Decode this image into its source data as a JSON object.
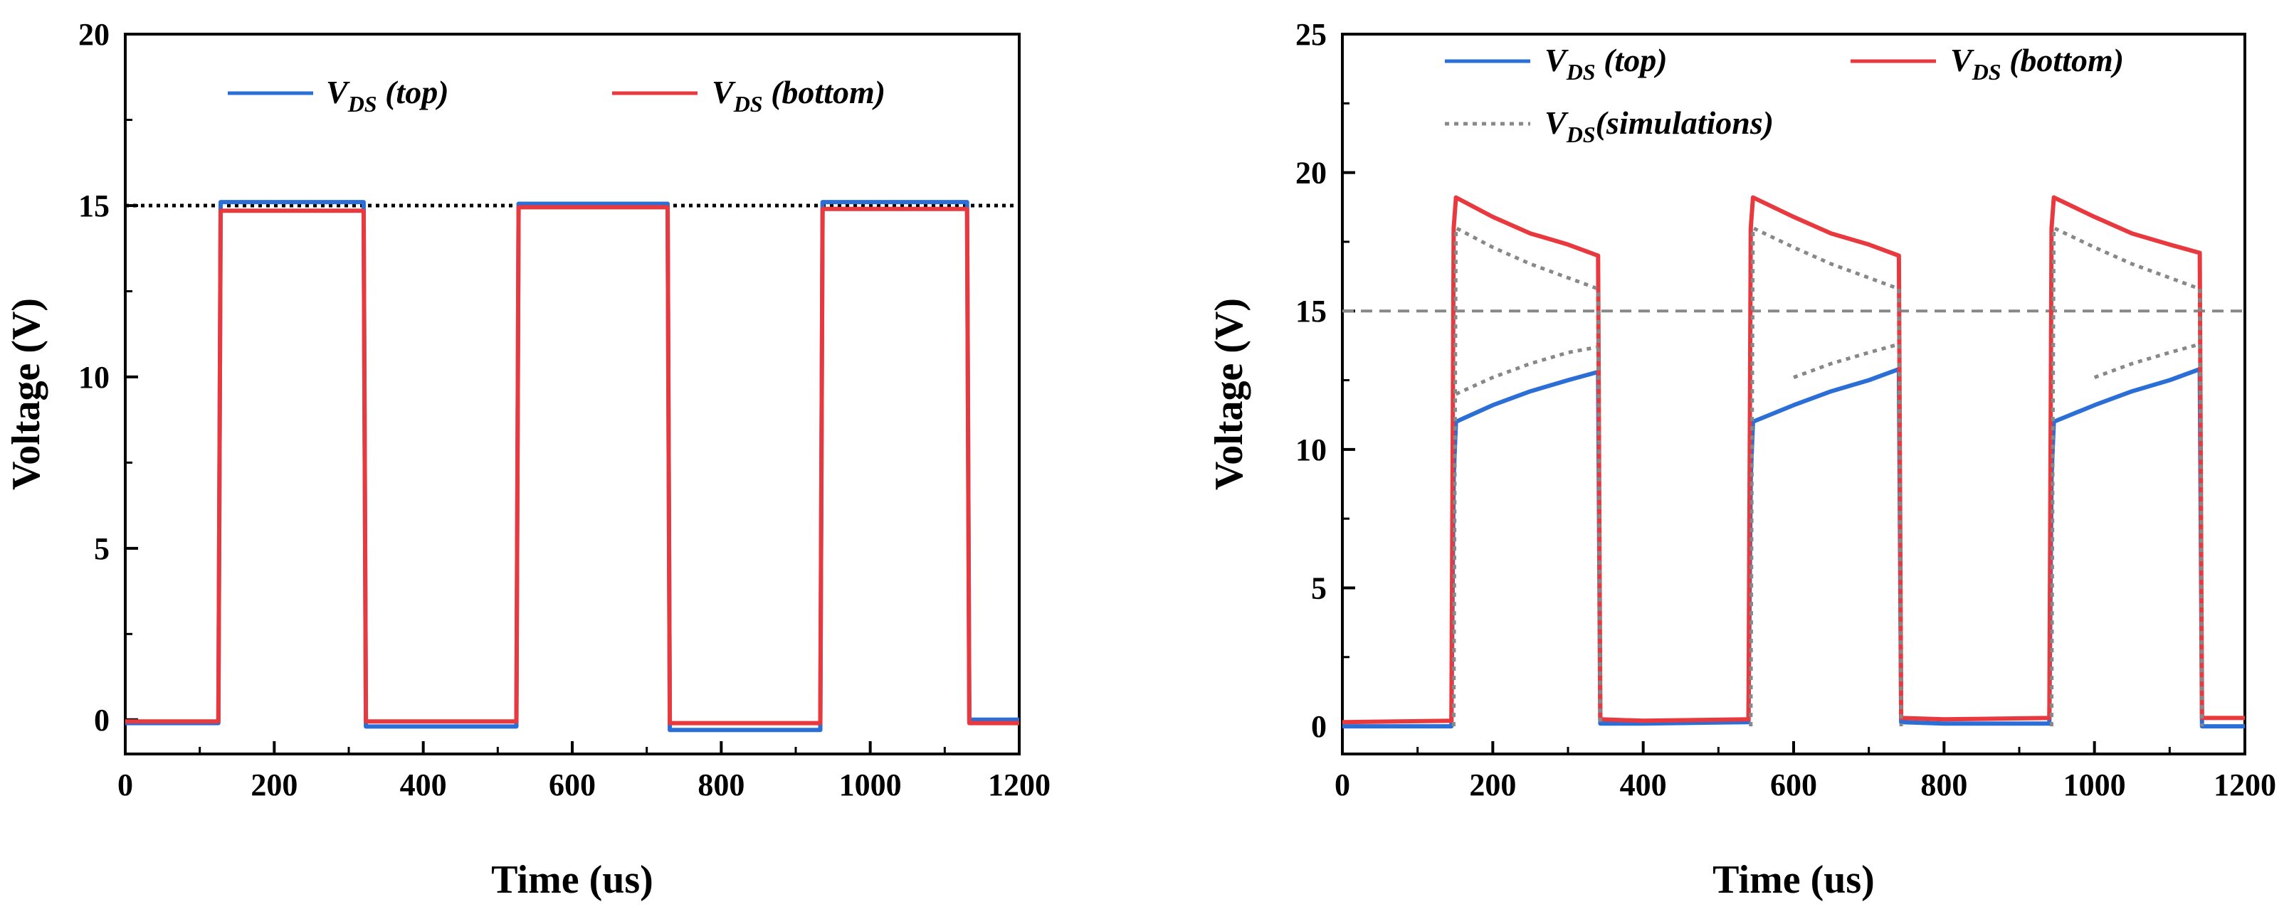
{
  "chart_data": [
    {
      "type": "line",
      "id": "left",
      "title": "",
      "xlabel": "Time (us)",
      "ylabel": "Voltage (V)",
      "xlim": [
        0,
        1200
      ],
      "ylim": [
        -1,
        20
      ],
      "xticks": [
        0,
        200,
        400,
        600,
        800,
        1000,
        1200
      ],
      "yticks": [
        0,
        5,
        10,
        15,
        20
      ],
      "reference_line": {
        "y": 15,
        "style": "dotted",
        "color": "#000000"
      },
      "legend": [
        {
          "main": "V",
          "sub": "DS",
          "tail": " (top)",
          "series": "top"
        },
        {
          "main": "V",
          "sub": "DS",
          "tail": " (bottom)",
          "series": "bottom"
        }
      ],
      "series": [
        {
          "name": "V_DS (top)",
          "color": "#2b6fd6",
          "style": "solid",
          "x": [
            0,
            125,
            128,
            320,
            323,
            525,
            528,
            728,
            731,
            933,
            936,
            1130,
            1133,
            1200
          ],
          "y": [
            -0.1,
            -0.1,
            15.1,
            15.1,
            -0.2,
            -0.2,
            15.05,
            15.05,
            -0.3,
            -0.3,
            15.1,
            15.1,
            0.0,
            0.0
          ]
        },
        {
          "name": "V_DS (bottom)",
          "color": "#e8393f",
          "style": "solid",
          "x": [
            0,
            125,
            128,
            320,
            323,
            525,
            528,
            728,
            731,
            933,
            936,
            1130,
            1133,
            1200
          ],
          "y": [
            -0.05,
            -0.05,
            14.85,
            14.85,
            -0.05,
            -0.05,
            14.95,
            14.95,
            -0.1,
            -0.1,
            14.9,
            14.9,
            -0.1,
            -0.1
          ]
        }
      ]
    },
    {
      "type": "line",
      "id": "right",
      "title": "",
      "xlabel": "Time (us)",
      "ylabel": "Voltage (V)",
      "xlim": [
        0,
        1200
      ],
      "ylim": [
        -1,
        25
      ],
      "xticks": [
        0,
        200,
        400,
        600,
        800,
        1000,
        1200
      ],
      "yticks": [
        0,
        5,
        10,
        15,
        20,
        25
      ],
      "reference_line": {
        "y": 15,
        "style": "dashed",
        "color": "#888888"
      },
      "legend": [
        {
          "main": "V",
          "sub": "DS",
          "tail": " (top)",
          "series": "top"
        },
        {
          "main": "V",
          "sub": "DS",
          "tail": " (bottom)",
          "series": "bottom"
        },
        {
          "main": "V",
          "sub": "DS",
          "tail": "(simulations)",
          "series": "sim"
        }
      ],
      "series": [
        {
          "name": "V_DS (top)",
          "color": "#2b6fd6",
          "style": "solid",
          "x": [
            0,
            145,
            148,
            151,
            200,
            250,
            300,
            340,
            343,
            400,
            540,
            543,
            546,
            600,
            650,
            700,
            740,
            743,
            800,
            940,
            943,
            946,
            1000,
            1050,
            1100,
            1140,
            1143,
            1200
          ],
          "y": [
            0.0,
            0.0,
            9.0,
            11.0,
            11.6,
            12.1,
            12.5,
            12.8,
            0.1,
            0.1,
            0.15,
            9.0,
            11.0,
            11.6,
            12.1,
            12.5,
            12.9,
            0.15,
            0.1,
            0.1,
            9.0,
            11.0,
            11.6,
            12.1,
            12.5,
            12.9,
            0.0,
            0.0
          ]
        },
        {
          "name": "V_DS (bottom)",
          "color": "#e8393f",
          "style": "solid",
          "x": [
            0,
            145,
            148,
            151,
            200,
            250,
            300,
            340,
            343,
            400,
            540,
            543,
            546,
            600,
            650,
            700,
            740,
            743,
            800,
            940,
            943,
            946,
            1000,
            1050,
            1100,
            1140,
            1143,
            1200
          ],
          "y": [
            0.15,
            0.2,
            18.0,
            19.1,
            18.4,
            17.8,
            17.4,
            17.0,
            0.25,
            0.2,
            0.25,
            18.0,
            19.1,
            18.4,
            17.8,
            17.4,
            17.0,
            0.3,
            0.25,
            0.3,
            18.0,
            19.1,
            18.4,
            17.8,
            17.4,
            17.1,
            0.3,
            0.3
          ]
        },
        {
          "name": "V_DS(simulations) upper",
          "color": "#888888",
          "style": "dotted",
          "x": [
            148,
            151,
            200,
            250,
            300,
            340,
            343,
            540,
            543,
            546,
            600,
            650,
            700,
            740,
            743,
            940,
            943,
            946,
            1000,
            1050,
            1100,
            1140,
            1143
          ],
          "y": [
            0.0,
            18.0,
            17.3,
            16.7,
            16.2,
            15.8,
            0.0,
            null,
            0.0,
            18.0,
            17.3,
            16.7,
            16.2,
            15.8,
            0.0,
            null,
            0.0,
            18.0,
            17.3,
            16.7,
            16.2,
            15.8,
            0.0
          ]
        },
        {
          "name": "V_DS(simulations) lower",
          "color": "#888888",
          "style": "dotted",
          "x": [
            151,
            200,
            250,
            300,
            340,
            546,
            600,
            650,
            700,
            740,
            946,
            1000,
            1050,
            1100,
            1140
          ],
          "y": [
            12.0,
            12.6,
            13.1,
            13.5,
            13.7,
            null,
            12.6,
            13.1,
            13.5,
            13.8,
            null,
            12.6,
            13.1,
            13.5,
            13.8
          ]
        }
      ]
    }
  ]
}
